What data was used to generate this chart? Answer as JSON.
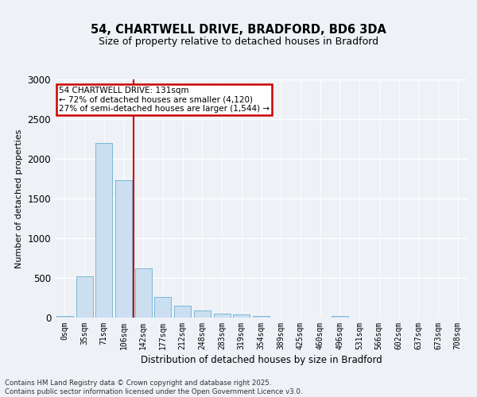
{
  "title_line1": "54, CHARTWELL DRIVE, BRADFORD, BD6 3DA",
  "title_line2": "Size of property relative to detached houses in Bradford",
  "xlabel": "Distribution of detached houses by size in Bradford",
  "ylabel": "Number of detached properties",
  "bar_color": "#ccdff0",
  "bar_edge_color": "#6aaed6",
  "vline_color": "#cc0000",
  "vline_x": 3.5,
  "annotation_text": "54 CHARTWELL DRIVE: 131sqm\n← 72% of detached houses are smaller (4,120)\n27% of semi-detached houses are larger (1,544) →",
  "annotation_box_color": "#cc0000",
  "categories": [
    "0sqm",
    "35sqm",
    "71sqm",
    "106sqm",
    "142sqm",
    "177sqm",
    "212sqm",
    "248sqm",
    "283sqm",
    "319sqm",
    "354sqm",
    "389sqm",
    "425sqm",
    "460sqm",
    "496sqm",
    "531sqm",
    "566sqm",
    "602sqm",
    "637sqm",
    "673sqm",
    "708sqm"
  ],
  "values": [
    20,
    520,
    2200,
    1730,
    625,
    260,
    150,
    90,
    55,
    40,
    20,
    5,
    5,
    5,
    25,
    5,
    5,
    5,
    5,
    5,
    5
  ],
  "ylim": [
    0,
    3000
  ],
  "yticks": [
    0,
    500,
    1000,
    1500,
    2000,
    2500,
    3000
  ],
  "footer_text": "Contains HM Land Registry data © Crown copyright and database right 2025.\nContains public sector information licensed under the Open Government Licence v3.0.",
  "background_color": "#eef2f7",
  "plot_background": "#eef2f7",
  "grid_color": "#ffffff"
}
